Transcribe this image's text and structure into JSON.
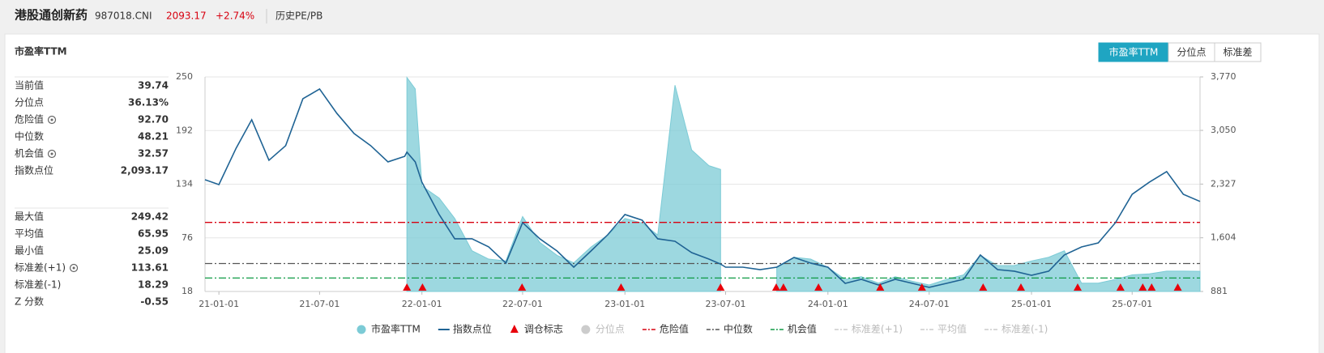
{
  "header": {
    "name": "港股通创新药",
    "code": "987018.CNI",
    "price": "2093.17",
    "change": "+2.74%",
    "page": "历史PE/PB"
  },
  "title": "市盈率TTM",
  "tabs": [
    "市盈率TTM",
    "分位点",
    "标准差"
  ],
  "stats": [
    [
      {
        "label": "当前值",
        "value": "39.74"
      },
      {
        "label": "分位点",
        "value": "36.13%"
      },
      {
        "label": "危险值",
        "value": "92.70",
        "setting": true
      },
      {
        "label": "中位数",
        "value": "48.21"
      },
      {
        "label": "机会值",
        "value": "32.57",
        "setting": true
      },
      {
        "label": "指数点位",
        "value": "2,093.17"
      }
    ],
    [
      {
        "label": "最大值",
        "value": "249.42"
      },
      {
        "label": "平均值",
        "value": "65.95"
      },
      {
        "label": "最小值",
        "value": "25.09"
      },
      {
        "label": "标准差(+1)",
        "value": "113.61",
        "setting": true
      },
      {
        "label": "标准差(-1)",
        "value": "18.29"
      },
      {
        "label": "Z 分数",
        "value": "-0.55"
      }
    ]
  ],
  "chart_data": {
    "type": "line",
    "xlim": [
      "20-12-07",
      "25-10-31"
    ],
    "xticks": [
      "21-01-01",
      "21-07-01",
      "22-01-01",
      "22-07-01",
      "23-01-01",
      "23-07-01",
      "24-01-01",
      "24-07-01",
      "25-01-01",
      "25-07-01"
    ],
    "ylim": [
      18,
      250
    ],
    "yticks": [
      18,
      76,
      134,
      192,
      250
    ],
    "y2lim": [
      881,
      3770
    ],
    "y2ticks": [
      881,
      {
        "value": 1604,
        "label": "1,604"
      },
      {
        "value": 2327,
        "label": "2,327"
      },
      {
        "value": 3050,
        "label": "3,050"
      },
      {
        "value": 3770,
        "label": "3,770"
      }
    ],
    "grid": true,
    "x": [
      "20-12-07",
      "21-01-01",
      "21-02-01",
      "21-03-01",
      "21-04-01",
      "21-05-01",
      "21-06-01",
      "21-07-01",
      "21-08-01",
      "21-09-01",
      "21-10-01",
      "21-11-01",
      "21-12-01",
      "21-12-05",
      "21-12-20",
      "22-01-01",
      "22-02-01",
      "22-03-01",
      "22-04-01",
      "22-05-01",
      "22-06-01",
      "22-07-01",
      "22-08-01",
      "22-09-01",
      "22-10-01",
      "22-11-01",
      "22-12-01",
      "23-01-01",
      "23-02-01",
      "23-03-01",
      "23-04-01",
      "23-05-01",
      "23-06-01",
      "23-06-22",
      "23-07-01",
      "23-08-01",
      "23-09-01",
      "23-10-01",
      "23-11-01",
      "23-12-01",
      "24-01-01",
      "24-02-01",
      "24-03-01",
      "24-04-01",
      "24-05-01",
      "24-06-01",
      "24-07-01",
      "24-08-01",
      "24-09-01",
      "24-10-01",
      "24-11-01",
      "24-12-01",
      "25-01-01",
      "25-02-01",
      "25-03-01",
      "25-04-01",
      "25-05-01",
      "25-06-01",
      "25-07-01",
      "25-08-01",
      "25-09-01",
      "25-10-01",
      "25-10-31"
    ],
    "series": [
      {
        "name": "市盈率TTM",
        "type": "area",
        "color": "#7ccbd6",
        "values": [
          null,
          null,
          null,
          null,
          null,
          null,
          null,
          null,
          null,
          null,
          null,
          null,
          null,
          249.42,
          237,
          132,
          119,
          97,
          62,
          53,
          51,
          99,
          71,
          57,
          49,
          66,
          79,
          97,
          92,
          79,
          241,
          171,
          154,
          150,
          null,
          null,
          null,
          44,
          55,
          53,
          44,
          31,
          34,
          27,
          34,
          29,
          25,
          31,
          36,
          57,
          46,
          46,
          51,
          55,
          62,
          27,
          27,
          31,
          36,
          37,
          40,
          40,
          39.74
        ]
      },
      {
        "name": "指数点位",
        "type": "line",
        "color": "#1f6394",
        "axis": "y2",
        "values": [
          2386,
          2320,
          2811,
          3193,
          2648,
          2844,
          3476,
          3607,
          3280,
          3008,
          2844,
          2626,
          2700,
          2757,
          2626,
          2353,
          1917,
          1590,
          1590,
          1481,
          1263,
          1808,
          1590,
          1426,
          1208,
          1426,
          1644,
          1917,
          1841,
          1590,
          1557,
          1404,
          1317,
          1250,
          1208,
          1208,
          1175,
          1208,
          1339,
          1263,
          1208,
          990,
          1045,
          968,
          1045,
          990,
          936,
          990,
          1045,
          1372,
          1175,
          1154,
          1099,
          1154,
          1372,
          1481,
          1535,
          1808,
          2190,
          2353,
          2495,
          2190,
          2093.17
        ]
      }
    ],
    "markers": {
      "name": "调仓标志",
      "color": "#e8000b",
      "x": [
        "21-12-05",
        "22-01-02",
        "22-06-30",
        "22-12-25",
        "23-06-22",
        "23-09-30",
        "23-10-13",
        "23-12-15",
        "24-04-04",
        "24-06-18",
        "24-10-06",
        "24-12-13",
        "25-03-25",
        "25-06-10",
        "25-07-20",
        "25-08-05",
        "25-09-21"
      ]
    },
    "percentile": {
      "name": "分位点",
      "visible": false
    },
    "lines": [
      {
        "name": "危险值",
        "value": 92.7,
        "color": "#d7000f",
        "visible": true
      },
      {
        "name": "中位数",
        "value": 48.21,
        "color": "#555555",
        "visible": true
      },
      {
        "name": "机会值",
        "value": 32.57,
        "color": "#0f9a45",
        "visible": true
      },
      {
        "name": "标准差(+1)",
        "value": 113.61,
        "color": "#aaaaaa",
        "visible": false
      },
      {
        "name": "平均值",
        "value": 65.95,
        "color": "#aaaaaa",
        "visible": false
      },
      {
        "name": "标准差(-1)",
        "value": 18.29,
        "color": "#aaaaaa",
        "visible": false
      }
    ]
  }
}
